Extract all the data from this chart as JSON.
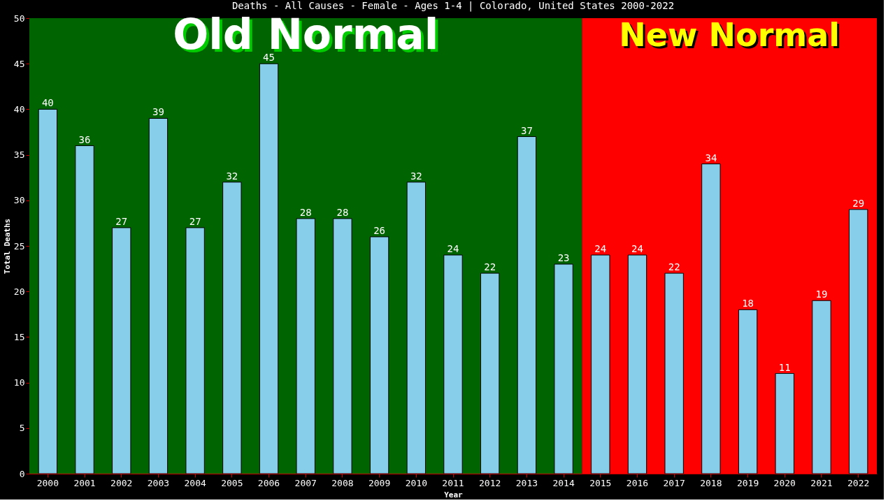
{
  "chart_data": {
    "type": "bar",
    "title": "Deaths - All Causes - Female - Ages 1-4 | Colorado, United States 2000-2022",
    "xlabel": "Year",
    "ylabel": "Total Deaths",
    "categories": [
      "2000",
      "2001",
      "2002",
      "2003",
      "2004",
      "2005",
      "2006",
      "2007",
      "2008",
      "2009",
      "2010",
      "2011",
      "2012",
      "2013",
      "2014",
      "2015",
      "2016",
      "2017",
      "2018",
      "2019",
      "2020",
      "2021",
      "2022"
    ],
    "values": [
      40,
      36,
      27,
      39,
      27,
      32,
      45,
      28,
      28,
      26,
      32,
      24,
      22,
      37,
      23,
      24,
      24,
      22,
      34,
      18,
      11,
      19,
      29
    ],
    "color": "#87ceeb",
    "ylim": [
      0,
      50
    ],
    "yticks": [
      0,
      5,
      10,
      15,
      20,
      25,
      30,
      35,
      40,
      45,
      50
    ],
    "grid": false,
    "data_labels": true,
    "bands": [
      {
        "axis": "x",
        "from": "2000",
        "to": "2014",
        "label": "Old Normal",
        "color": "#006400"
      },
      {
        "axis": "x",
        "from": "2015",
        "to": "2022",
        "label": "New Normal",
        "color": "#ff0000"
      }
    ]
  }
}
